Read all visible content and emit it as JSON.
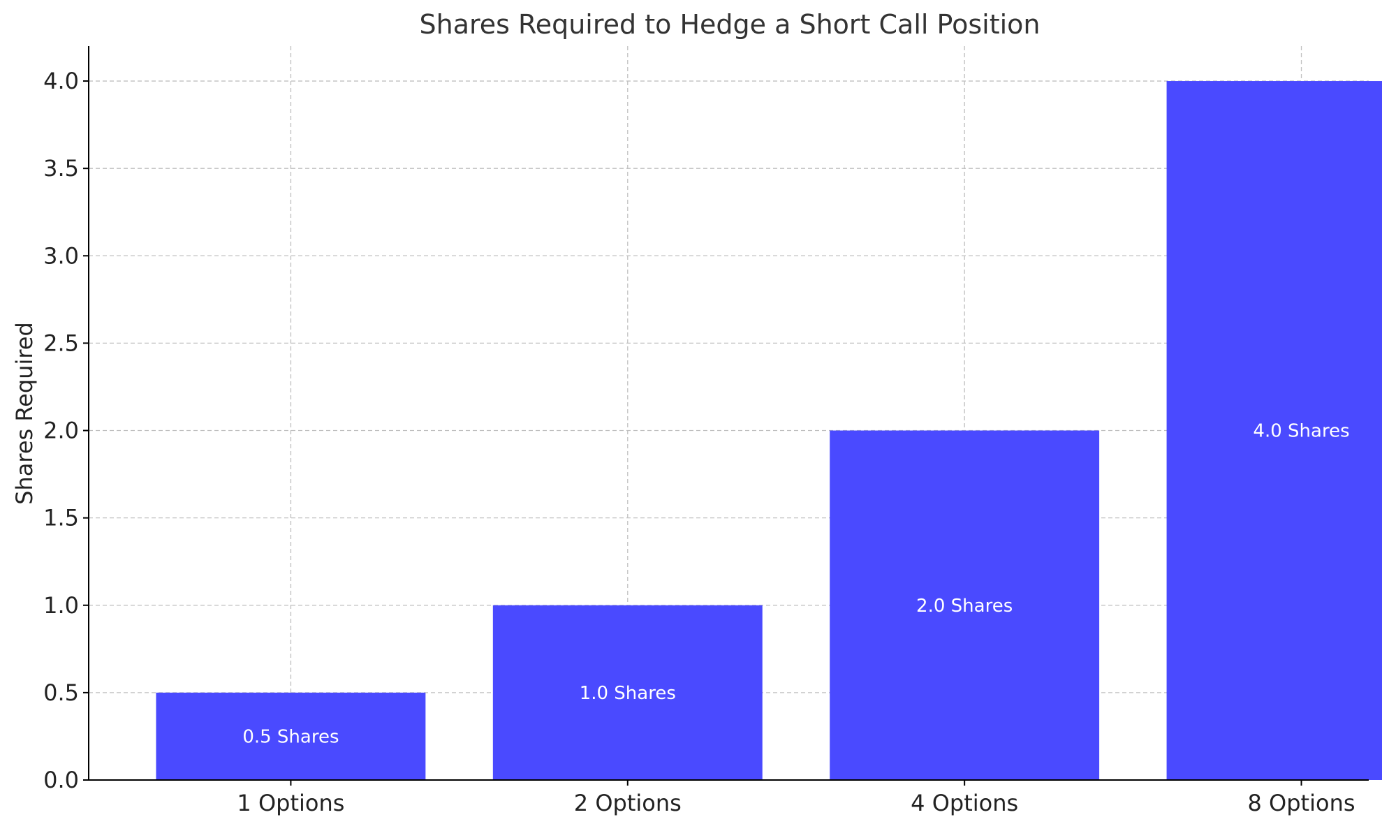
{
  "chart_data": {
    "type": "bar",
    "title": "Shares Required to Hedge a Short Call Position",
    "xlabel": "",
    "ylabel": "Shares Required",
    "categories": [
      "1 Options",
      "2 Options",
      "4 Options",
      "8 Options"
    ],
    "values": [
      0.5,
      1.0,
      2.0,
      4.0
    ],
    "data_labels": [
      "0.5 Shares",
      "1.0 Shares",
      "2.0 Shares",
      "4.0 Shares"
    ],
    "ylim": [
      0,
      4.2
    ],
    "yticks": [
      "0.0",
      "0.5",
      "1.0",
      "1.5",
      "2.0",
      "2.5",
      "3.0",
      "3.5",
      "4.0"
    ],
    "grid": true,
    "bar_color": "#4a4aff",
    "label_color": "#ffffff"
  }
}
